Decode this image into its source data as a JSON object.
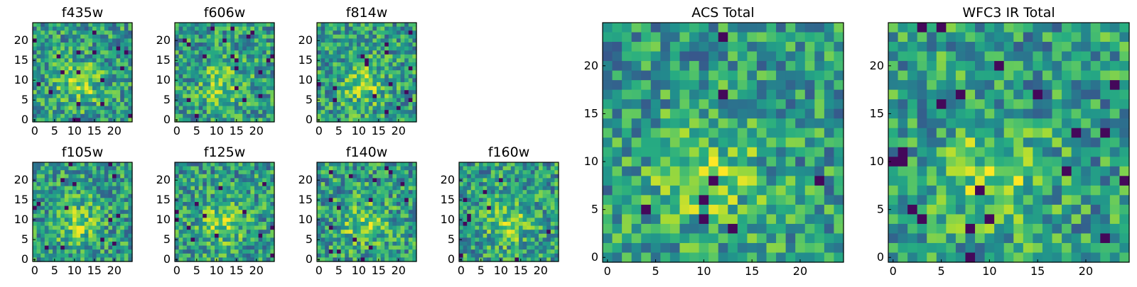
{
  "colors": {
    "colormap": "viridis",
    "frame": "#000000",
    "background": "#ffffff"
  },
  "chart_data": [
    {
      "type": "heatmap",
      "title": "f435w",
      "xticks": [
        "0",
        "5",
        "10",
        "15",
        "20"
      ],
      "yticks": [
        "0",
        "5",
        "10",
        "15",
        "20"
      ],
      "xlim": [
        0,
        24
      ],
      "ylim": [
        0,
        24
      ]
    },
    {
      "type": "heatmap",
      "title": "f606w",
      "xticks": [
        "0",
        "5",
        "10",
        "15",
        "20"
      ],
      "yticks": [
        "0",
        "5",
        "10",
        "15",
        "20"
      ],
      "xlim": [
        0,
        24
      ],
      "ylim": [
        0,
        24
      ]
    },
    {
      "type": "heatmap",
      "title": "f814w",
      "xticks": [
        "0",
        "5",
        "10",
        "15",
        "20"
      ],
      "yticks": [
        "0",
        "5",
        "10",
        "15",
        "20"
      ],
      "xlim": [
        0,
        24
      ],
      "ylim": [
        0,
        24
      ]
    },
    {
      "type": "heatmap",
      "title": "f105w",
      "xticks": [
        "0",
        "5",
        "10",
        "15",
        "20"
      ],
      "yticks": [
        "0",
        "5",
        "10",
        "15",
        "20"
      ],
      "xlim": [
        0,
        24
      ],
      "ylim": [
        0,
        24
      ]
    },
    {
      "type": "heatmap",
      "title": "f125w",
      "xticks": [
        "0",
        "5",
        "10",
        "15",
        "20"
      ],
      "yticks": [
        "0",
        "5",
        "10",
        "15",
        "20"
      ],
      "xlim": [
        0,
        24
      ],
      "ylim": [
        0,
        24
      ]
    },
    {
      "type": "heatmap",
      "title": "f140w",
      "xticks": [
        "0",
        "5",
        "10",
        "15",
        "20"
      ],
      "yticks": [
        "0",
        "5",
        "10",
        "15",
        "20"
      ],
      "xlim": [
        0,
        24
      ],
      "ylim": [
        0,
        24
      ]
    },
    {
      "type": "heatmap",
      "title": "f160w",
      "xticks": [
        "0",
        "5",
        "10",
        "15",
        "20"
      ],
      "yticks": [
        "0",
        "5",
        "10",
        "15",
        "20"
      ],
      "xlim": [
        0,
        24
      ],
      "ylim": [
        0,
        24
      ]
    },
    {
      "type": "heatmap",
      "title": "ACS Total",
      "xticks": [
        "0",
        "5",
        "10",
        "15",
        "20"
      ],
      "yticks": [
        "0",
        "5",
        "10",
        "15",
        "20"
      ],
      "xlim": [
        0,
        24
      ],
      "ylim": [
        0,
        24
      ]
    },
    {
      "type": "heatmap",
      "title": "WFC3 IR Total",
      "xticks": [
        "0",
        "5",
        "10",
        "15",
        "20"
      ],
      "yticks": [
        "0",
        "5",
        "10",
        "15",
        "20"
      ],
      "xlim": [
        0,
        24
      ],
      "ylim": [
        0,
        24
      ]
    }
  ]
}
